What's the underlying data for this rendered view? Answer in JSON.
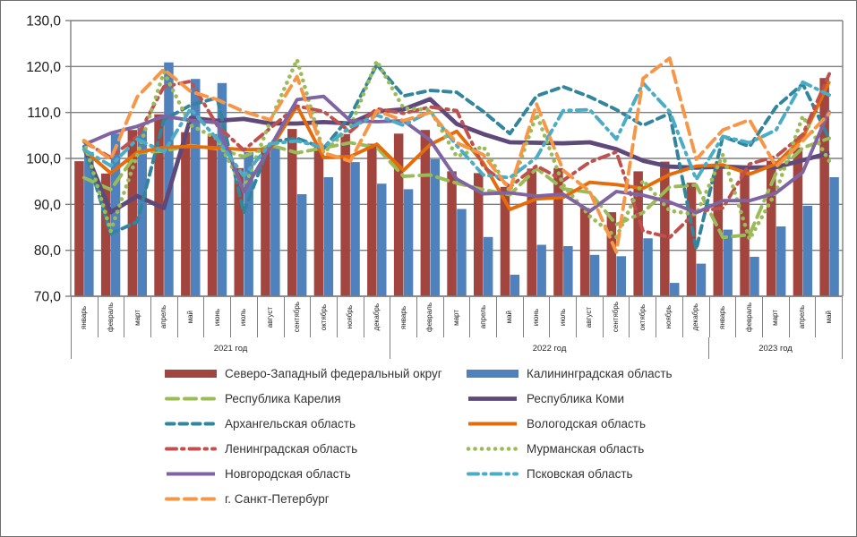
{
  "figure": {
    "background": "#ffffff",
    "border_color": "#6e6e6e",
    "grid_color": "#7f7f7f"
  },
  "chart_data": {
    "type": "combo-bar-line",
    "title": "",
    "grid": true,
    "y_axis": {
      "min": 70,
      "max": 130,
      "step": 10,
      "tick_labels": [
        "130,0",
        "120,0",
        "110,0",
        "100,0",
        "90,0",
        "80,0",
        "70,0"
      ]
    },
    "x_axis": {
      "months": [
        "январь",
        "февраль",
        "март",
        "апрель",
        "май",
        "июнь",
        "июль",
        "август",
        "сентябрь",
        "октябрь",
        "ноябрь",
        "декабрь",
        "январь",
        "февраль",
        "март",
        "апрель",
        "май",
        "июнь",
        "июль",
        "август",
        "сентябрь",
        "октябрь",
        "ноябрь",
        "декабрь",
        "январь",
        "февраль",
        "март",
        "апрель",
        "май"
      ],
      "year_groups": [
        {
          "label": "2021 год",
          "span": 12
        },
        {
          "label": "2022 год",
          "span": 12
        },
        {
          "label": "2023 год",
          "span": 5
        }
      ]
    },
    "bar_series": [
      {
        "name": "Северо-Западный федеральный округ",
        "color": "#A1453E",
        "values": [
          99.4,
          96.7,
          106.2,
          109.6,
          105.7,
          105.3,
          97.9,
          102.2,
          106.4,
          103.2,
          105.3,
          103.2,
          105.4,
          106.2,
          97.2,
          96.8,
          93.8,
          97.8,
          97.9,
          89.2,
          88.3,
          97.2,
          99.3,
          94.7,
          97.8,
          98.0,
          99.5,
          102.4,
          117.5
        ]
      },
      {
        "name": "Калининградская область",
        "color": "#4F81BD",
        "values": [
          101.4,
          105.4,
          106.7,
          120.9,
          117.3,
          116.4,
          101.4,
          102.3,
          92.2,
          95.9,
          99.2,
          94.5,
          93.3,
          99.8,
          89.0,
          82.9,
          74.7,
          81.2,
          80.9,
          79.0,
          78.7,
          82.6,
          72.9,
          77.1,
          84.5,
          78.6,
          85.2,
          89.7,
          95.9
        ]
      }
    ],
    "line_series": [
      {
        "name": "Республика Карелия",
        "color": "#9BBB59",
        "dash": "long-dash",
        "values": [
          95.8,
          93.2,
          101.2,
          101.6,
          102.8,
          102.1,
          100.4,
          102.9,
          101.2,
          102.3,
          103.4,
          102.4,
          96.1,
          96.4,
          94.6,
          93.2,
          92.1,
          97.8,
          93.4,
          92.6,
          85.6,
          88.2,
          93.8,
          94.2,
          82.8,
          83.4,
          96.8,
          102.3,
          104.4
        ]
      },
      {
        "name": "Республика Коми",
        "color": "#5F497A",
        "dash": "solid",
        "values": [
          102.3,
          88.3,
          91.8,
          89.2,
          108.8,
          108.2,
          108.6,
          107.6,
          107.6,
          107.9,
          107.6,
          110.2,
          110.7,
          112.9,
          107.5,
          105.3,
          103.5,
          103.4,
          103.3,
          103.5,
          102.0,
          99.5,
          98.2,
          98.0,
          98.2,
          98.0,
          98.1,
          99.6,
          101.2
        ]
      },
      {
        "name": "Архангельская область",
        "color": "#31859C",
        "dash": "dash",
        "values": [
          102.6,
          83.6,
          86.2,
          108.4,
          111.6,
          113.2,
          88.2,
          103.6,
          104.4,
          102.2,
          109.2,
          120.4,
          113.6,
          114.8,
          114.4,
          110.2,
          105.4,
          113.6,
          115.6,
          113.4,
          110.6,
          107.2,
          109.8,
          80.2,
          104.8,
          102.6,
          111.2,
          116.2,
          104.2
        ]
      },
      {
        "name": "Вологодская область",
        "color": "#E46C0A",
        "dash": "solid",
        "values": [
          101.8,
          96.8,
          101.3,
          102.4,
          102.6,
          102.3,
          101.9,
          102.0,
          111.4,
          100.2,
          100.4,
          103.1,
          97.4,
          103.0,
          105.9,
          99.0,
          88.9,
          91.2,
          91.5,
          94.8,
          94.3,
          93.5,
          96.5,
          98.3,
          98.6,
          96.6,
          98.8,
          104.5,
          116.8
        ]
      },
      {
        "name": "Ленинградская область",
        "color": "#C0504D",
        "dash": "dash-dot",
        "values": [
          103.6,
          100.2,
          104.8,
          115.6,
          116.8,
          107.2,
          101.8,
          106.6,
          111.4,
          110.2,
          105.8,
          110.8,
          109.8,
          111.2,
          110.4,
          98.2,
          93.8,
          98.4,
          95.2,
          99.2,
          101.4,
          84.2,
          82.8,
          88.4,
          89.2,
          98.8,
          100.4,
          105.2,
          118.4
        ]
      },
      {
        "name": "Мурманская область",
        "color": "#9BBB59",
        "dash": "dot",
        "values": [
          103.8,
          84.2,
          100.8,
          118.8,
          107.2,
          104.3,
          93.2,
          108.2,
          121.5,
          101.2,
          106.8,
          121.2,
          110.9,
          110.6,
          100.4,
          102.6,
          92.8,
          109.6,
          94.2,
          87.4,
          82.9,
          95.2,
          88.6,
          87.8,
          100.8,
          82.4,
          92.8,
          109.2,
          99.4
        ]
      },
      {
        "name": "Новгородская область",
        "color": "#8064A2",
        "dash": "solid",
        "values": [
          103.0,
          105.5,
          107.0,
          109.2,
          108.3,
          107.8,
          92.8,
          102.5,
          112.8,
          113.5,
          108.2,
          108.0,
          108.2,
          104.0,
          95.5,
          92.3,
          92.5,
          91.8,
          92.2,
          88.5,
          92.8,
          92.0,
          90.5,
          88.2,
          90.8,
          90.8,
          92.5,
          97.0,
          110.5
        ]
      },
      {
        "name": "Псковская область",
        "color": "#4BACC6",
        "dash": "dash-dot",
        "values": [
          101.9,
          98.4,
          104.2,
          101.4,
          110.8,
          104.2,
          96.2,
          103.2,
          103.8,
          102.4,
          106.8,
          109.4,
          107.2,
          110.2,
          102.8,
          96.4,
          95.8,
          100.2,
          110.4,
          110.6,
          104.2,
          116.4,
          110.2,
          95.4,
          104.8,
          103.4,
          106.2,
          116.6,
          113.8
        ]
      },
      {
        "name": "г. Санкт-Петербург",
        "color": "#F79646",
        "dash": "long-dash",
        "values": [
          103.9,
          99.8,
          113.4,
          119.4,
          114.6,
          112.8,
          110.2,
          108.4,
          117.8,
          101.2,
          99.4,
          110.4,
          108.2,
          110.0,
          103.4,
          100.8,
          93.2,
          111.8,
          97.4,
          92.8,
          79.6,
          117.4,
          121.8,
          99.8,
          106.2,
          108.4,
          98.2,
          103.8,
          109.8
        ]
      }
    ],
    "legend_order": [
      "bar0",
      "bar1",
      "line0",
      "line1",
      "line2",
      "line3",
      "line4",
      "line5",
      "line6",
      "line7",
      "line8"
    ]
  }
}
